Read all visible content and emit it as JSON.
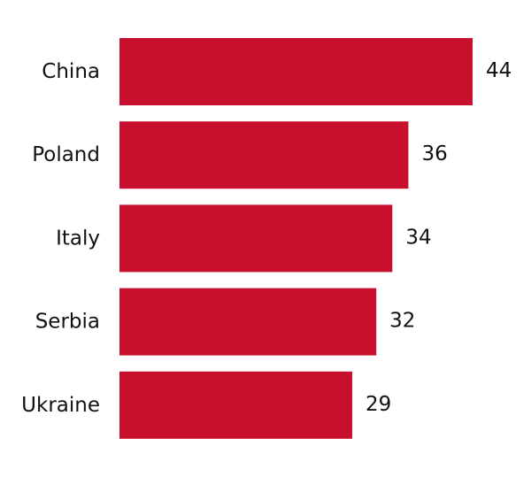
{
  "chart_data": {
    "type": "bar",
    "orientation": "horizontal",
    "categories": [
      "China",
      "Poland",
      "Italy",
      "Serbia",
      "Ukraine"
    ],
    "values": [
      44,
      36,
      34,
      32,
      29
    ],
    "title": "",
    "xlabel": "",
    "ylabel": "",
    "xlim": [
      0,
      44
    ],
    "grid": false,
    "legend": "none",
    "data_labels": true,
    "bar_color": "#c8102e",
    "text_color": "#111111",
    "background": "#ffffff"
  }
}
